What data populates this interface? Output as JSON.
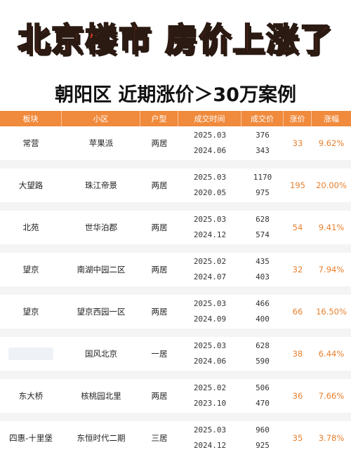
{
  "banner": {
    "title": "北京楼市 房价上涨了"
  },
  "subtitle": "朝阳区 近期涨价＞30万案例",
  "table": {
    "headers": [
      "板块",
      "小区",
      "户型",
      "成交时间",
      "成交价",
      "涨价",
      "涨幅"
    ],
    "rows": [
      {
        "area": "常营",
        "community": "苹果派",
        "layout": "两居",
        "date1": "2025.03",
        "date2": "2024.06",
        "price1": "376",
        "price2": "343",
        "rise": "33",
        "pct": "9.62%"
      },
      {
        "area": "大望路",
        "community": "珠江帝景",
        "layout": "两居",
        "date1": "2025.03",
        "date2": "2020.05",
        "price1": "1170",
        "price2": "975",
        "rise": "195",
        "pct": "20.00%"
      },
      {
        "area": "北苑",
        "community": "世华泊郡",
        "layout": "两居",
        "date1": "2025.03",
        "date2": "2024.12",
        "price1": "628",
        "price2": "574",
        "rise": "54",
        "pct": "9.41%"
      },
      {
        "area": "望京",
        "community": "南湖中园二区",
        "layout": "两居",
        "date1": "2025.02",
        "date2": "2024.07",
        "price1": "435",
        "price2": "403",
        "rise": "32",
        "pct": "7.94%"
      },
      {
        "area": "望京",
        "community": "望京西园一区",
        "layout": "两居",
        "date1": "2025.03",
        "date2": "2024.09",
        "price1": "466",
        "price2": "400",
        "rise": "66",
        "pct": "16.50%"
      },
      {
        "area": "",
        "community": "国风北京",
        "layout": "一居",
        "date1": "2025.03",
        "date2": "2024.06",
        "price1": "628",
        "price2": "590",
        "rise": "38",
        "pct": "6.44%"
      },
      {
        "area": "东大桥",
        "community": "核桃园北里",
        "layout": "两居",
        "date1": "2025.02",
        "date2": "2023.10",
        "price1": "506",
        "price2": "470",
        "rise": "36",
        "pct": "7.66%"
      },
      {
        "area": "四惠-十里堡",
        "community": "东恒时代二期",
        "layout": "三居",
        "date1": "2025.03",
        "date2": "2024.12",
        "price1": "960",
        "price2": "925",
        "rise": "35",
        "pct": "3.78%"
      }
    ]
  },
  "colors": {
    "banner_red": "#e43b2a",
    "header_orange": "#f08a3c",
    "value_orange": "#e8802e"
  }
}
